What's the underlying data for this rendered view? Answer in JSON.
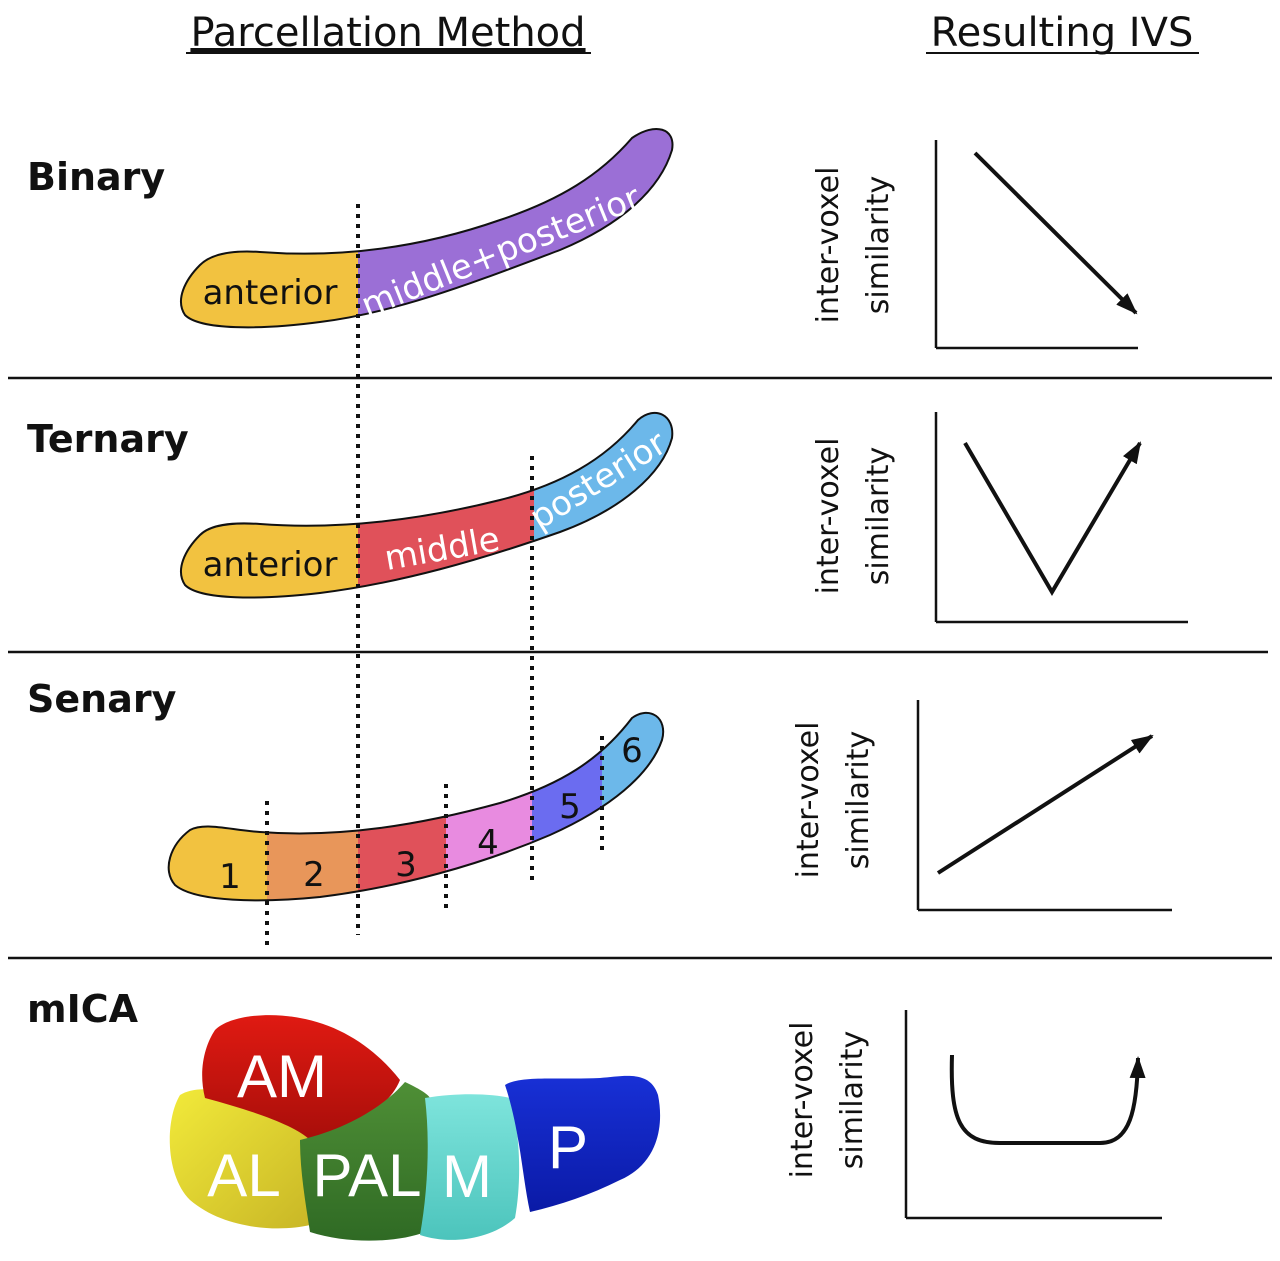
{
  "headers": {
    "left": "Parcellation Method",
    "right": "Resulting IVS"
  },
  "rows": [
    {
      "label": "Binary",
      "segments": [
        "anterior",
        "middle+posterior"
      ]
    },
    {
      "label": "Ternary",
      "segments": [
        "anterior",
        "middle",
        "posterior"
      ]
    },
    {
      "label": "Senary",
      "segments": [
        "1",
        "2",
        "3",
        "4",
        "5",
        "6"
      ]
    },
    {
      "label": "mICA",
      "segments": [
        "AM",
        "AL",
        "PAL",
        "M",
        "P"
      ]
    }
  ],
  "axis_label": {
    "line1": "inter-voxel",
    "line2": "similarity"
  },
  "colors": {
    "anterior": "#f2c240",
    "middle_posterior": "#9b6fd6",
    "middle": "#e0515a",
    "posterior": "#6cb8ea",
    "senary": [
      "#f2c240",
      "#e8965a",
      "#e0515a",
      "#e88be0",
      "#6b6cf0",
      "#6cb8ea"
    ],
    "mica": {
      "AM": "#c8140e",
      "AL": "#e6dc2e",
      "PAL": "#3f7f2e",
      "M": "#62d6cf",
      "P": "#0c22c4"
    }
  },
  "icons": [
    "arrow-down-right-icon",
    "v-shape-arrow-icon",
    "arrow-up-right-icon",
    "u-shape-arrow-icon"
  ]
}
